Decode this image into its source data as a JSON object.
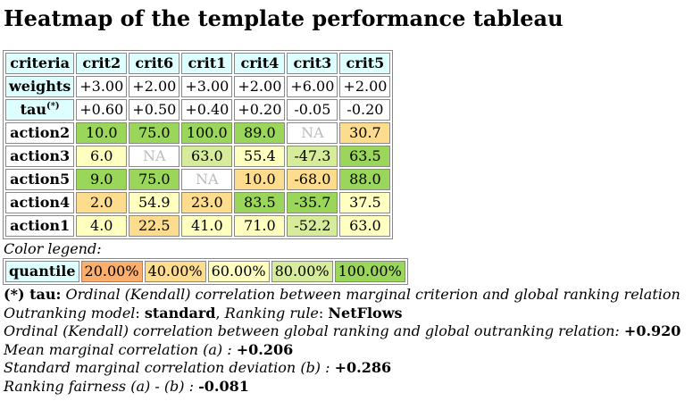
{
  "title": "Heatmap of the template performance tableau",
  "table": {
    "corner": "criteria",
    "criteria": [
      "crit2",
      "crit6",
      "crit1",
      "crit4",
      "crit3",
      "crit5"
    ],
    "weights_label": "weights",
    "weights": [
      "+3.00",
      "+2.00",
      "+3.00",
      "+2.00",
      "+6.00",
      "+2.00"
    ],
    "tau_label": "tau",
    "tau_sup": "(*)",
    "tau": [
      "+0.60",
      "+0.50",
      "+0.40",
      "+0.20",
      "-0.05",
      "-0.20"
    ],
    "rows": [
      {
        "action": "action2",
        "cells": [
          {
            "v": "10.0",
            "c": "#9ad65a"
          },
          {
            "v": "75.0",
            "c": "#9ad65a"
          },
          {
            "v": "100.0",
            "c": "#9ad65a"
          },
          {
            "v": "89.0",
            "c": "#9ad65a"
          },
          {
            "v": "NA",
            "c": "#ffffff",
            "na": true
          },
          {
            "v": "30.7",
            "c": "#fedc8d"
          }
        ]
      },
      {
        "action": "action3",
        "cells": [
          {
            "v": "6.0",
            "c": "#ffffc0"
          },
          {
            "v": "NA",
            "c": "#ffffff",
            "na": true
          },
          {
            "v": "63.0",
            "c": "#d6ec9b"
          },
          {
            "v": "55.4",
            "c": "#ffffc0"
          },
          {
            "v": "-47.3",
            "c": "#d6ec9b"
          },
          {
            "v": "63.5",
            "c": "#9ad65a"
          }
        ]
      },
      {
        "action": "action5",
        "cells": [
          {
            "v": "9.0",
            "c": "#9ad65a"
          },
          {
            "v": "75.0",
            "c": "#9ad65a"
          },
          {
            "v": "NA",
            "c": "#ffffff",
            "na": true
          },
          {
            "v": "10.0",
            "c": "#fedc8d"
          },
          {
            "v": "-68.0",
            "c": "#fedc8d"
          },
          {
            "v": "88.0",
            "c": "#9ad65a"
          }
        ]
      },
      {
        "action": "action4",
        "cells": [
          {
            "v": "2.0",
            "c": "#fedc8d"
          },
          {
            "v": "54.9",
            "c": "#ffffc0"
          },
          {
            "v": "23.0",
            "c": "#fedc8d"
          },
          {
            "v": "83.5",
            "c": "#9ad65a"
          },
          {
            "v": "-35.7",
            "c": "#9ad65a"
          },
          {
            "v": "37.5",
            "c": "#ffffc0"
          }
        ]
      },
      {
        "action": "action1",
        "cells": [
          {
            "v": "4.0",
            "c": "#ffffc0"
          },
          {
            "v": "22.5",
            "c": "#fedc8d"
          },
          {
            "v": "41.0",
            "c": "#ffffc0"
          },
          {
            "v": "71.0",
            "c": "#ffffc0"
          },
          {
            "v": "-52.2",
            "c": "#d6ec9b"
          },
          {
            "v": "63.0",
            "c": "#ffffc0"
          }
        ]
      }
    ]
  },
  "legend": {
    "title": "Color legend:",
    "label": "quantile",
    "items": [
      {
        "label": "20.00%",
        "color": "#fdae6b"
      },
      {
        "label": "40.00%",
        "color": "#fedc8d"
      },
      {
        "label": "60.00%",
        "color": "#ffffc0"
      },
      {
        "label": "80.00%",
        "color": "#d6ec9b"
      },
      {
        "label": "100.00%",
        "color": "#9ad65a"
      }
    ]
  },
  "notes": {
    "tau_key": "(*) tau:",
    "tau_text": "Ordinal (Kendall) correlation between marginal criterion and global ranking relation",
    "model_label": "Outranking model",
    "model_value": "standard",
    "rule_label": "Ranking rule",
    "rule_value": "NetFlows",
    "kendall_label": "Ordinal (Kendall) correlation between global ranking and global outranking relation:",
    "kendall_value": "+0.920",
    "mean_label": "Mean marginal correlation (a) :",
    "mean_value": "+0.206",
    "std_label": "Standard marginal correlation deviation (b) :",
    "std_value": "+0.286",
    "fair_label": "Ranking fairness (a) - (b) :",
    "fair_value": "-0.081"
  }
}
